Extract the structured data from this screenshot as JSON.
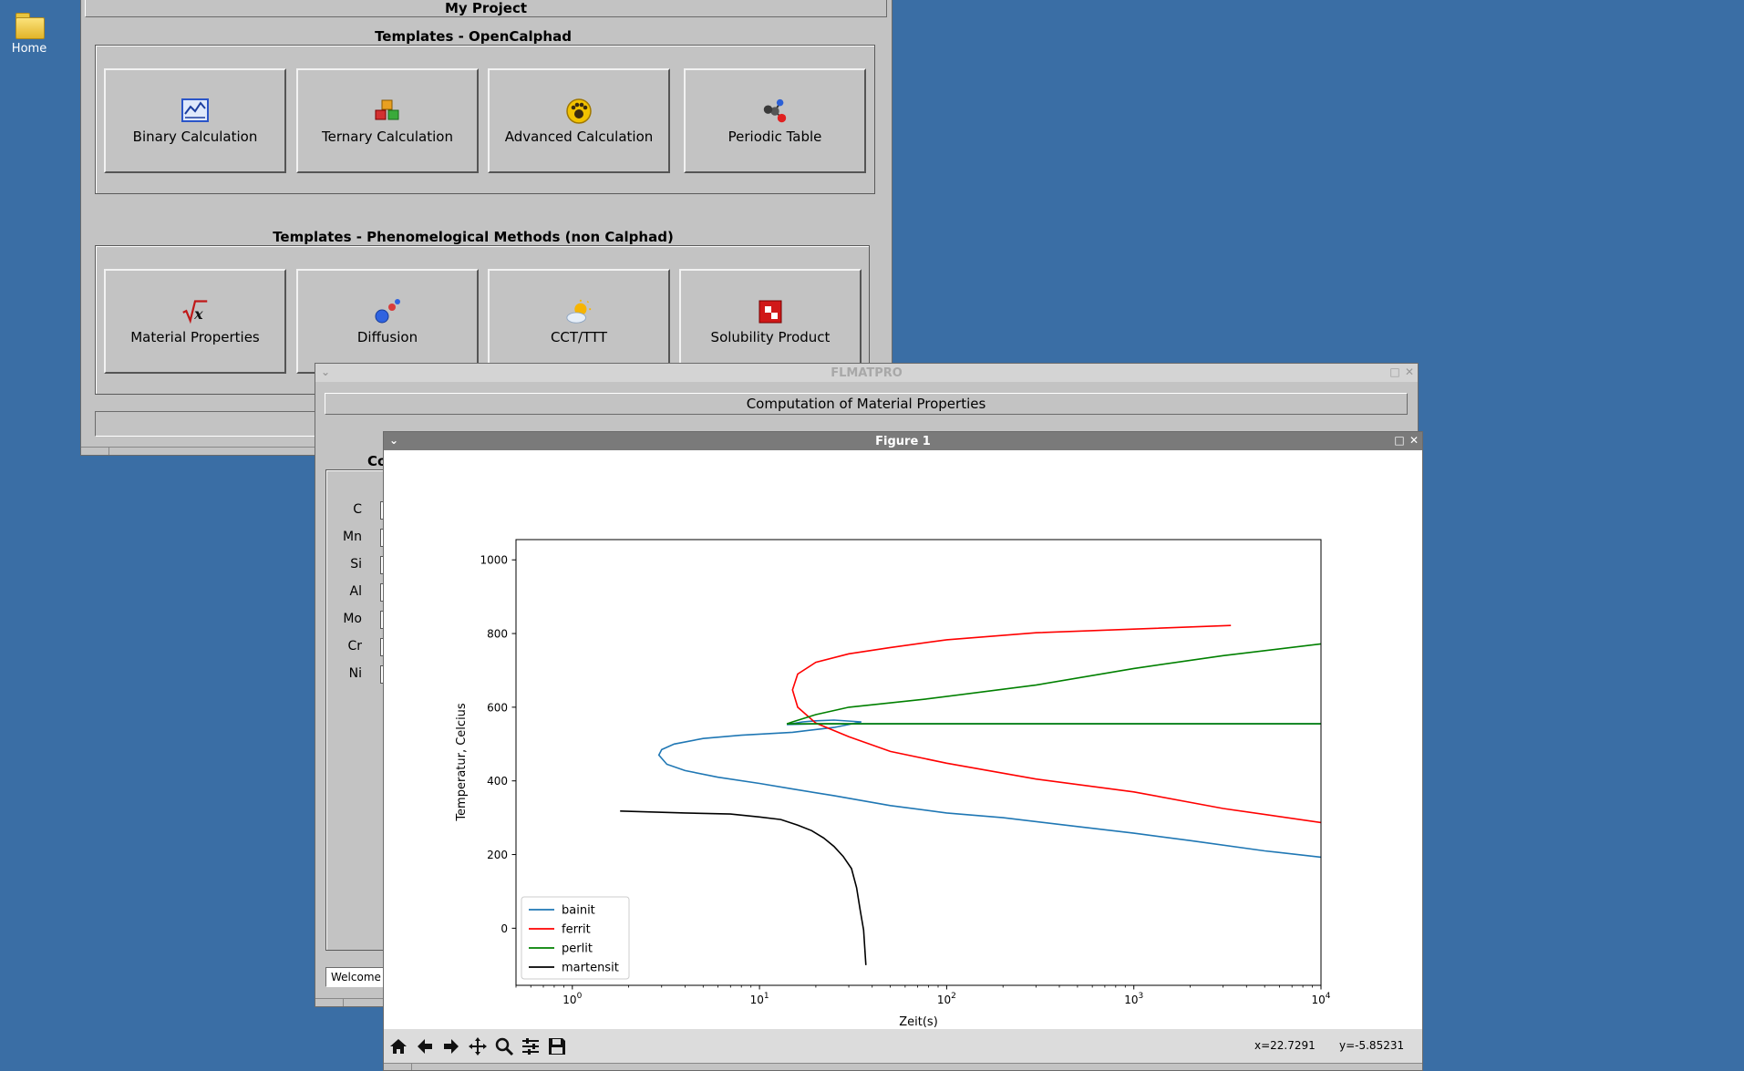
{
  "desktop": {
    "home_label": "Home"
  },
  "project_window": {
    "title": "My Project",
    "calphad_caption": "Templates - OpenCalphad",
    "calphad_buttons": [
      "Binary Calculation",
      "Ternary Calculation",
      "Advanced Calculation",
      "Periodic Table"
    ],
    "pheno_caption": "Templates - Phenomelogical Methods (non Calphad)",
    "pheno_buttons": [
      "Material Properties",
      "Diffusion",
      "CCT/TTT",
      "Solubility Product"
    ]
  },
  "flmatpro_window": {
    "title": "FLMATPRO",
    "header": "Computation of Material Properties",
    "composition_caption": "Co",
    "elements": [
      "C",
      "Mn",
      "Si",
      "Al",
      "Mo",
      "Cr",
      "Ni"
    ],
    "status_text": "Welcome"
  },
  "figure_window": {
    "title": "Figure 1",
    "coords": {
      "x": "x=22.7291",
      "y": "y=-5.85231"
    },
    "toolbar_icons": [
      "home-icon",
      "back-arrow-icon",
      "forward-arrow-icon",
      "pan-icon",
      "zoom-icon",
      "subplots-icon",
      "save-icon"
    ]
  },
  "chart_data": {
    "type": "line",
    "title": "",
    "xlabel": "Zeit(s)",
    "ylabel": "Temperatur, Celcius",
    "xscale": "log",
    "xlim": [
      0.5,
      10000
    ],
    "ylim": [
      -155,
      1055
    ],
    "x_ticks": [
      1,
      10,
      100,
      1000,
      10000
    ],
    "x_tick_labels": [
      {
        "base": "10",
        "exp": "0"
      },
      {
        "base": "10",
        "exp": "1"
      },
      {
        "base": "10",
        "exp": "2"
      },
      {
        "base": "10",
        "exp": "3"
      },
      {
        "base": "10",
        "exp": "4"
      }
    ],
    "y_ticks": [
      0,
      200,
      400,
      600,
      800,
      1000
    ],
    "y_tick_labels": [
      "0",
      "200",
      "400",
      "600",
      "800",
      "1000"
    ],
    "legend_position": "lower-left",
    "grid": false,
    "series": [
      {
        "name": "bainit",
        "color": "#1f77b4",
        "points": [
          [
            10000,
            193
          ],
          [
            5000,
            210
          ],
          [
            2000,
            238
          ],
          [
            1000,
            258
          ],
          [
            500,
            276
          ],
          [
            200,
            300
          ],
          [
            100,
            313
          ],
          [
            50,
            333
          ],
          [
            25,
            360
          ],
          [
            15,
            378
          ],
          [
            10,
            393
          ],
          [
            6,
            410
          ],
          [
            4,
            428
          ],
          [
            3.2,
            445
          ],
          [
            2.9,
            470
          ],
          [
            3,
            485
          ],
          [
            3.5,
            500
          ],
          [
            5,
            515
          ],
          [
            8,
            524
          ],
          [
            15,
            532
          ],
          [
            25,
            545
          ],
          [
            30,
            553
          ],
          [
            35,
            560
          ],
          [
            25,
            565
          ],
          [
            20,
            563
          ],
          [
            17,
            560
          ],
          [
            14,
            553
          ],
          [
            20,
            555
          ],
          [
            40,
            555
          ],
          [
            200,
            555
          ],
          [
            1000,
            555
          ],
          [
            10000,
            555
          ]
        ]
      },
      {
        "name": "ferrit",
        "color": "#ff0000",
        "points": [
          [
            10000,
            287
          ],
          [
            3000,
            325
          ],
          [
            1000,
            370
          ],
          [
            300,
            405
          ],
          [
            100,
            448
          ],
          [
            50,
            480
          ],
          [
            30,
            520
          ],
          [
            20,
            557
          ],
          [
            16,
            600
          ],
          [
            15,
            647
          ],
          [
            16,
            690
          ],
          [
            20,
            722
          ],
          [
            30,
            745
          ],
          [
            50,
            762
          ],
          [
            100,
            783
          ],
          [
            300,
            802
          ],
          [
            1000,
            812
          ],
          [
            3300,
            822
          ]
        ]
      },
      {
        "name": "perlit",
        "color": "#008000",
        "points": [
          [
            10000,
            772
          ],
          [
            3000,
            740
          ],
          [
            1000,
            705
          ],
          [
            300,
            660
          ],
          [
            80,
            623
          ],
          [
            30,
            600
          ],
          [
            20,
            580
          ],
          [
            15,
            560
          ],
          [
            14,
            555
          ],
          [
            40,
            555
          ],
          [
            200,
            555
          ],
          [
            1000,
            555
          ],
          [
            10000,
            555
          ]
        ]
      },
      {
        "name": "martensit",
        "color": "#000000",
        "points": [
          [
            1.8,
            318
          ],
          [
            4,
            313
          ],
          [
            7,
            310
          ],
          [
            10,
            302
          ],
          [
            13,
            295
          ],
          [
            16,
            280
          ],
          [
            19,
            265
          ],
          [
            22,
            245
          ],
          [
            25,
            222
          ],
          [
            28,
            195
          ],
          [
            31,
            162
          ],
          [
            33,
            110
          ],
          [
            34.5,
            50
          ],
          [
            36,
            -5
          ],
          [
            37,
            -100
          ]
        ]
      }
    ]
  }
}
